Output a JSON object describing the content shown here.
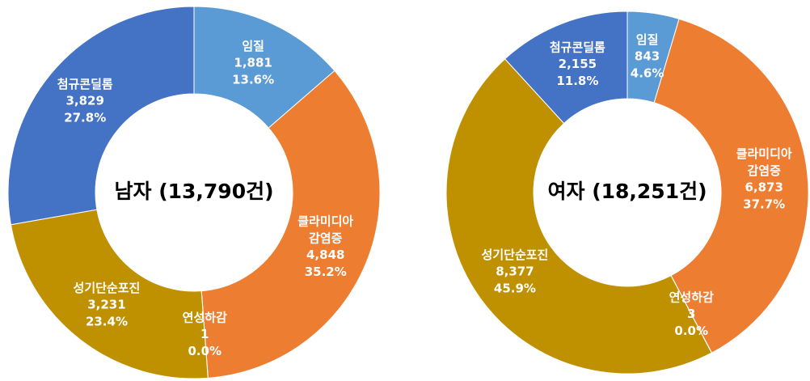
{
  "chart_data": [
    {
      "type": "pie",
      "title": "남자 (13,790건)",
      "categories": [
        "임질",
        "클라미디아 감염증",
        "연성하감",
        "성기단순포진",
        "첨규콘딜롬"
      ],
      "values": [
        1881,
        4848,
        1,
        3231,
        3829
      ],
      "value_labels": [
        "1,881",
        "4,848",
        "1",
        "3,231",
        "3,829"
      ],
      "percentages": [
        13.6,
        35.2,
        0.0,
        23.4,
        27.8
      ],
      "percentage_labels": [
        "13.6%",
        "35.2%",
        "0.0%",
        "23.4%",
        "27.8%"
      ],
      "colors": [
        "#5b9bd5",
        "#ed7d31",
        "#a5a5a5",
        "#bf9000",
        "#4472c4"
      ]
    },
    {
      "type": "pie",
      "title": "여자 (18,251건)",
      "categories": [
        "임질",
        "클라미디아 감염증",
        "연성하감",
        "성기단순포진",
        "첨규콘딜롬"
      ],
      "values": [
        843,
        6873,
        3,
        8377,
        2155
      ],
      "value_labels": [
        "843",
        "6,873",
        "3",
        "8,377",
        "2,155"
      ],
      "percentages": [
        4.6,
        37.7,
        0.0,
        45.9,
        11.8
      ],
      "percentage_labels": [
        "4.6%",
        "37.7%",
        "0.0%",
        "45.9%",
        "11.8%"
      ],
      "colors": [
        "#5b9bd5",
        "#ed7d31",
        "#a5a5a5",
        "#bf9000",
        "#4472c4"
      ]
    }
  ]
}
